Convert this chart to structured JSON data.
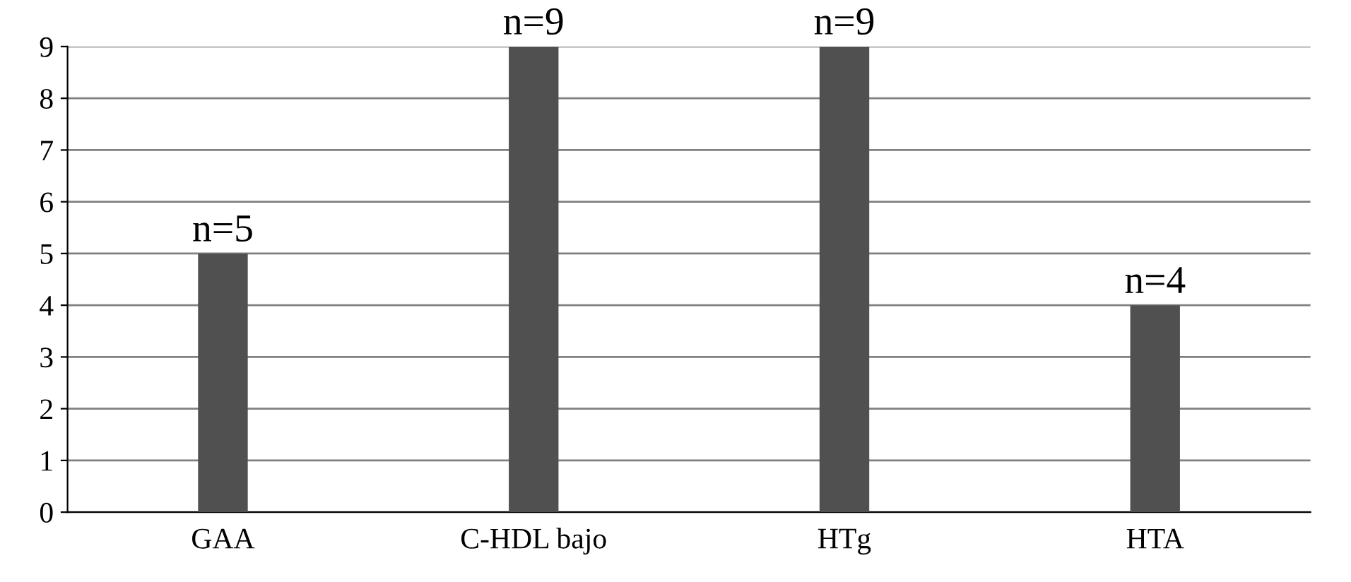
{
  "chart_data": {
    "type": "bar",
    "categories": [
      "GAA",
      "C-HDL bajo",
      "HTg",
      "HTA"
    ],
    "values": [
      5,
      9,
      9,
      4
    ],
    "value_labels": [
      "n=5",
      "n=9",
      "n=9",
      "n=4"
    ],
    "color": "#505050",
    "ylim": [
      0,
      9
    ],
    "yticks": [
      0,
      1,
      2,
      3,
      4,
      5,
      6,
      7,
      8,
      9
    ],
    "grid": "y",
    "legend": false
  }
}
